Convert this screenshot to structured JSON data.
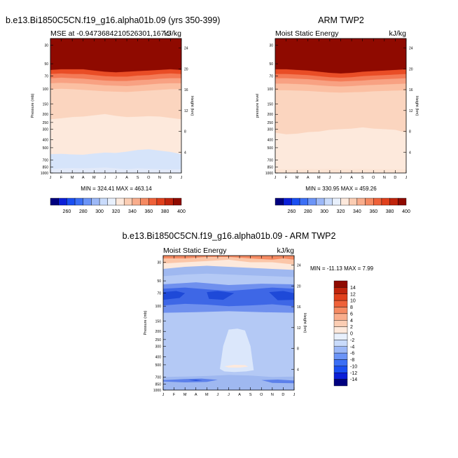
{
  "figure": {
    "panel1_title": "b.e13.Bi1850C5CN.f19_g16.alpha01b.09 (yrs 350-399)",
    "panel2_title": "ARM TWP2",
    "panel3_title": "b.e13.Bi1850C5CN.f19_g16.alpha01b.09 - ARM TWP2"
  },
  "chart_data": [
    {
      "type": "heatmap",
      "left_label": "MSE at -0.9473684210526301,167.5",
      "right_label": "kJ/kg",
      "xlabel": "",
      "ylabel": "Pressure (mb)",
      "ylabel_right": "Height (km)",
      "months": [
        "J",
        "F",
        "M",
        "A",
        "M",
        "J",
        "J",
        "A",
        "S",
        "O",
        "N",
        "D",
        "J"
      ],
      "pressure_ticks": [
        30,
        50,
        70,
        100,
        150,
        200,
        250,
        300,
        400,
        500,
        700,
        850,
        1000
      ],
      "height_ticks": [
        24,
        20,
        16,
        12,
        8,
        4
      ],
      "stats": "MIN = 324.41 MAX = 463.14",
      "min": 324.41,
      "max": 463.14,
      "colorbar_labels": [
        "260",
        "280",
        "300",
        "320",
        "340",
        "360",
        "380",
        "400"
      ],
      "contour_boundaries_mb": {
        "gt_400": [
          59,
          58,
          58,
          58,
          60,
          62,
          63,
          62,
          61,
          60,
          59,
          58,
          59
        ],
        "380_400": [
          66,
          65,
          66,
          66,
          68,
          70,
          71,
          71,
          69,
          68,
          66,
          65,
          66
        ],
        "370_380": [
          74,
          73,
          74,
          75,
          77,
          79,
          80,
          80,
          78,
          77,
          75,
          74,
          74
        ],
        "360_370": [
          85,
          84,
          85,
          86,
          88,
          90,
          91,
          92,
          90,
          88,
          86,
          85,
          85
        ],
        "350_360": [
          100,
          99,
          100,
          102,
          104,
          106,
          107,
          108,
          106,
          104,
          102,
          100,
          100
        ],
        "340_350": [
          228,
          222,
          215,
          212,
          205,
          198,
          208,
          215,
          213,
          210,
          212,
          220,
          228
        ],
        "330_340": [
          595,
          590,
          600,
          605,
          585,
          570,
          575,
          555,
          530,
          520,
          540,
          560,
          595
        ],
        "320_330": [
          900,
          880,
          875,
          880,
          870,
          860,
          880,
          900,
          880,
          890,
          900,
          905,
          900
        ]
      }
    },
    {
      "type": "heatmap",
      "left_label": "Moist Static Energy",
      "right_label": "kJ/kg",
      "ylabel": "pressure level",
      "ylabel_right": "Height (km)",
      "months": [
        "J",
        "F",
        "M",
        "A",
        "M",
        "J",
        "J",
        "A",
        "S",
        "O",
        "N",
        "D",
        "J"
      ],
      "pressure_ticks": [
        30,
        50,
        70,
        100,
        150,
        200,
        250,
        300,
        400,
        500,
        700,
        850,
        1000
      ],
      "height_ticks": [
        24,
        20,
        16,
        12,
        8,
        4
      ],
      "stats": "MIN = 330.95 MAX = 459.26",
      "min": 330.95,
      "max": 459.26,
      "colorbar_labels": [
        "260",
        "280",
        "300",
        "320",
        "340",
        "360",
        "380",
        "400"
      ],
      "contour_boundaries_mb": {
        "gt_400": [
          58,
          58,
          59,
          60,
          62,
          64,
          65,
          64,
          62,
          61,
          60,
          59,
          58
        ],
        "380_400": [
          66,
          66,
          67,
          68,
          70,
          72,
          73,
          72,
          70,
          69,
          68,
          67,
          66
        ],
        "370_380": [
          74,
          74,
          75,
          76,
          78,
          80,
          81,
          80,
          79,
          77,
          76,
          75,
          74
        ],
        "360_370": [
          86,
          86,
          87,
          88,
          90,
          92,
          93,
          92,
          90,
          89,
          88,
          87,
          86
        ],
        "350_360": [
          103,
          103,
          104,
          105,
          107,
          109,
          110,
          109,
          108,
          106,
          105,
          104,
          103
        ],
        "340_350": [
          330,
          345,
          340,
          325,
          320,
          305,
          300,
          295,
          285,
          295,
          300,
          305,
          330
        ],
        "330_340": [
          900,
          905,
          900,
          895,
          900,
          890,
          895,
          900,
          895,
          900,
          900,
          905,
          900
        ]
      }
    },
    {
      "type": "heatmap",
      "left_label": "Moist Static Energy",
      "right_label": "kJ/kg",
      "ylabel": "Pressure (mb)",
      "ylabel_right": "Height (km)",
      "months": [
        "J",
        "F",
        "M",
        "A",
        "M",
        "J",
        "J",
        "A",
        "S",
        "O",
        "N",
        "D",
        "J"
      ],
      "pressure_ticks": [
        30,
        50,
        70,
        100,
        150,
        200,
        250,
        300,
        400,
        500,
        700,
        850,
        1000
      ],
      "height_ticks": [
        24,
        20,
        16,
        12,
        8,
        4
      ],
      "stats": "MIN = -11.13 MAX =   7.99",
      "min": -11.13,
      "max": 7.99,
      "colorbar_labels": [
        "14",
        "12",
        "10",
        "8",
        "6",
        "4",
        "2",
        "0",
        "-2",
        "-4",
        "-6",
        "-8",
        "-10",
        "-12",
        "-14"
      ],
      "regions": {
        "top_band_values_kjkg": [
          4,
          2,
          0,
          -2
        ],
        "upper_low_core_mb": [
          70,
          80
        ],
        "upper_low_min": -10,
        "mid_positive_blob_center_mb": 520,
        "lower_low_core_mb": [
          740,
          760
        ]
      }
    }
  ]
}
